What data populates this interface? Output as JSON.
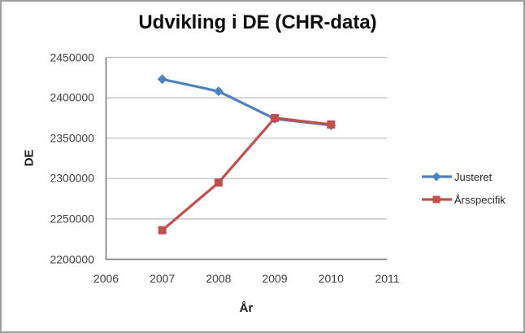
{
  "window": {
    "background": "#ffffff",
    "border_color": "#9e9e9e"
  },
  "chart_data": {
    "type": "line",
    "title": "Udvikling i DE (CHR-data)",
    "xlabel": "År",
    "ylabel": "DE",
    "x": [
      2007,
      2008,
      2009,
      2010
    ],
    "series": [
      {
        "name": "Justeret",
        "color": "#4F81BD",
        "marker": "diamond",
        "values": [
          2423000,
          2408000,
          2374000,
          2366000
        ]
      },
      {
        "name": "Årsspecifik",
        "color": "#C0504D",
        "marker": "square",
        "values": [
          2236000,
          2295000,
          2375000,
          2367000
        ]
      }
    ],
    "xlim": [
      2006,
      2011
    ],
    "ylim": [
      2200000,
      2450000
    ],
    "x_ticks": [
      2006,
      2007,
      2008,
      2009,
      2010,
      2011
    ],
    "y_ticks": [
      2200000,
      2250000,
      2300000,
      2350000,
      2400000,
      2450000
    ],
    "grid": "horizontal",
    "legend_position": "right",
    "colors": {
      "gridline": "#BDBDBD",
      "axis": "#848484",
      "text": "#3F3F3F"
    }
  }
}
